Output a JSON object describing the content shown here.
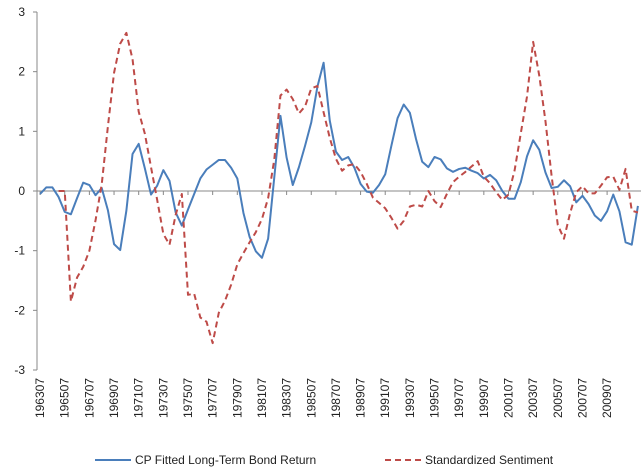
{
  "chart_data": {
    "type": "line",
    "categories": [
      "196307",
      null,
      null,
      null,
      "196507",
      null,
      null,
      null,
      "196707",
      null,
      null,
      null,
      "196907",
      null,
      null,
      null,
      "197107",
      null,
      null,
      null,
      "197307",
      null,
      null,
      null,
      "197507",
      null,
      null,
      null,
      "197707",
      null,
      null,
      null,
      "197907",
      null,
      null,
      null,
      "198107",
      null,
      null,
      null,
      "198307",
      null,
      null,
      null,
      "198507",
      null,
      null,
      null,
      "198707",
      null,
      null,
      null,
      "198907",
      null,
      null,
      null,
      "199107",
      null,
      null,
      null,
      "199307",
      null,
      null,
      null,
      "199507",
      null,
      null,
      null,
      "199707",
      null,
      null,
      null,
      "199907",
      null,
      null,
      null,
      "200107",
      null,
      null,
      null,
      "200307",
      null,
      null,
      null,
      "200507",
      null,
      null,
      null,
      "200707",
      null,
      null,
      null,
      "200907",
      null,
      null,
      null,
      null,
      null
    ],
    "series": [
      {
        "name": "CP Fitted Long-Term Bond Return",
        "color": "#4a7ebb",
        "line_style": "solid",
        "values": [
          -0.05,
          0.06,
          0.06,
          -0.1,
          -0.35,
          -0.39,
          -0.12,
          0.14,
          0.1,
          -0.07,
          0.05,
          -0.32,
          -0.89,
          -0.99,
          -0.33,
          0.62,
          0.79,
          0.38,
          -0.06,
          0.09,
          0.35,
          0.17,
          -0.36,
          -0.58,
          -0.31,
          -0.05,
          0.21,
          0.36,
          0.44,
          0.52,
          0.52,
          0.39,
          0.21,
          -0.37,
          -0.77,
          -1.01,
          -1.12,
          -0.8,
          0.23,
          1.26,
          0.56,
          0.1,
          0.4,
          0.76,
          1.15,
          1.75,
          2.15,
          1.18,
          0.66,
          0.52,
          0.57,
          0.39,
          0.12,
          -0.01,
          -0.03,
          0.1,
          0.28,
          0.76,
          1.22,
          1.45,
          1.31,
          0.87,
          0.49,
          0.4,
          0.57,
          0.53,
          0.38,
          0.32,
          0.37,
          0.39,
          0.34,
          0.3,
          0.21,
          0.27,
          0.18,
          0.0,
          -0.13,
          -0.13,
          0.15,
          0.58,
          0.85,
          0.69,
          0.31,
          0.05,
          0.07,
          0.18,
          0.08,
          -0.19,
          -0.08,
          -0.22,
          -0.41,
          -0.5,
          -0.34,
          -0.06,
          -0.34,
          -0.86,
          -0.9,
          -0.25
        ]
      },
      {
        "name": "Standardized Sentiment",
        "color": "#be4b48",
        "line_style": "dashed",
        "values": [
          null,
          null,
          null,
          0,
          0,
          -1.85,
          -1.45,
          -1.27,
          -1.0,
          -0.49,
          0.11,
          1.08,
          1.98,
          2.47,
          2.65,
          2.21,
          1.33,
          0.96,
          0.4,
          -0.15,
          -0.72,
          -0.9,
          -0.4,
          -0.05,
          -1.74,
          -1.72,
          -2.12,
          -2.19,
          -2.55,
          -2.04,
          -1.84,
          -1.57,
          -1.23,
          -1.04,
          -0.86,
          -0.69,
          -0.47,
          -0.12,
          0.53,
          1.6,
          1.7,
          1.54,
          1.3,
          1.42,
          1.72,
          1.76,
          1.32,
          0.89,
          0.54,
          0.34,
          0.43,
          0.45,
          0.32,
          0.12,
          -0.11,
          -0.2,
          -0.29,
          -0.45,
          -0.63,
          -0.5,
          -0.26,
          -0.23,
          -0.26,
          0.0,
          -0.17,
          -0.27,
          -0.05,
          0.15,
          0.24,
          0.32,
          0.41,
          0.5,
          0.24,
          0.13,
          -0.02,
          -0.15,
          -0.06,
          0.35,
          0.97,
          1.58,
          2.5,
          1.93,
          1.17,
          0.25,
          -0.57,
          -0.8,
          -0.37,
          -0.02,
          0.08,
          -0.04,
          -0.04,
          0.09,
          0.23,
          0.24,
          0.02,
          0.37,
          -0.33,
          -0.36
        ]
      }
    ],
    "ylim": [
      -3,
      3
    ],
    "yticks": [
      -3,
      -2,
      -1,
      0,
      1,
      2,
      3
    ],
    "grid": false,
    "legend": "bottom"
  }
}
